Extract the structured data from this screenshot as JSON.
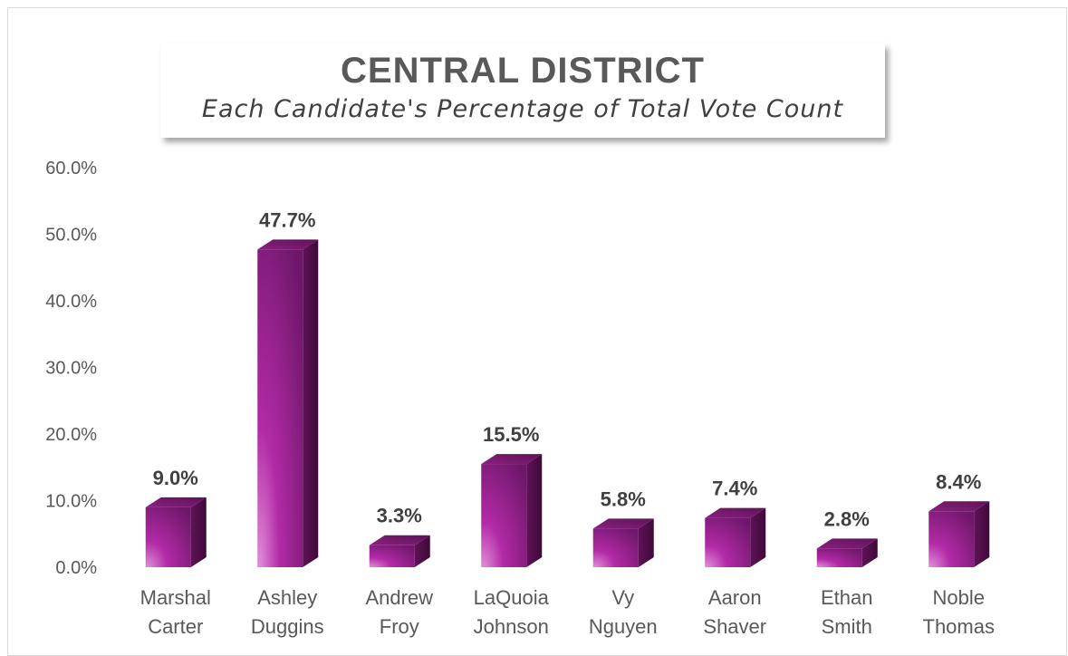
{
  "chart_data": {
    "type": "bar",
    "title": "CENTRAL DISTRICT",
    "subtitle": "Each Candidate's Percentage of Total Vote Count",
    "categories": [
      [
        "Marshal",
        "Carter"
      ],
      [
        "Ashley",
        "Duggins"
      ],
      [
        "Andrew",
        "Froy"
      ],
      [
        "LaQuoia",
        "Johnson"
      ],
      [
        "Vy",
        "Nguyen"
      ],
      [
        "Aaron",
        "Shaver"
      ],
      [
        "Ethan",
        "Smith"
      ],
      [
        "Noble",
        "Thomas"
      ]
    ],
    "values": [
      9.0,
      47.7,
      3.3,
      15.5,
      5.8,
      7.4,
      2.8,
      8.4
    ],
    "data_labels": [
      "9.0%",
      "47.7%",
      "3.3%",
      "15.5%",
      "5.8%",
      "7.4%",
      "2.8%",
      "8.4%"
    ],
    "yticks": [
      "0.0%",
      "10.0%",
      "20.0%",
      "30.0%",
      "40.0%",
      "50.0%",
      "60.0%"
    ],
    "ylim": [
      0,
      60
    ],
    "grid": false,
    "legend": "none",
    "bar_style": "3d-column",
    "colors": {
      "front": "#8e1f86",
      "front_light": "#d27bcb",
      "side": "#5a1052",
      "top": "#74186b",
      "text": "#595959"
    }
  }
}
